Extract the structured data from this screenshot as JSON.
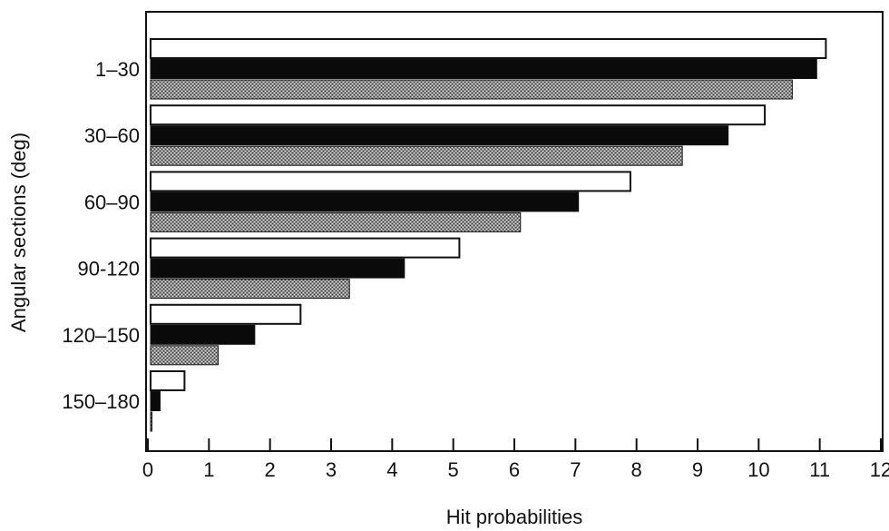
{
  "chart_data": {
    "type": "bar",
    "orientation": "horizontal",
    "title": "",
    "xlabel": "Hit probabilities",
    "ylabel": "Angular sections (deg)",
    "xlim": [
      0,
      12
    ],
    "x_ticks": [
      "0",
      "1",
      "2",
      "3",
      "4",
      "5",
      "6",
      "7",
      "8",
      "9",
      "10",
      "11",
      "12"
    ],
    "categories": [
      "1–30",
      "30–60",
      "60–90",
      "90-120",
      "120–150",
      "150–180"
    ],
    "series": [
      {
        "fill": "white",
        "values": [
          11.1,
          10.1,
          7.9,
          5.1,
          2.5,
          0.6
        ]
      },
      {
        "fill": "black",
        "values": [
          10.95,
          9.5,
          7.05,
          4.2,
          1.75,
          0.2
        ]
      },
      {
        "fill": "gray-hatched",
        "values": [
          10.55,
          8.75,
          6.1,
          3.3,
          1.15,
          0.05
        ]
      }
    ],
    "grid": false,
    "legend": "none"
  }
}
